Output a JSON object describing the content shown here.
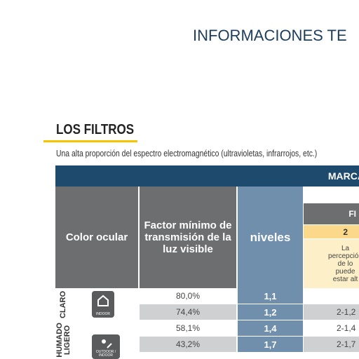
{
  "header": {
    "title": "INFORMACIONES TE"
  },
  "section": {
    "title": "LOS FILTROS",
    "intro": "Una alta proporción del espectro electromagnético (ultravioletas, infrarrojos, etc.)"
  },
  "table": {
    "banner": "MARCA",
    "columns": {
      "eye_color": "Color ocular",
      "factor": "Factor mínimo de transmisión de la luz visible",
      "levels": "niveles",
      "group": "FI",
      "sub": "2",
      "sub_note": "La percepción de lo puede estar alt"
    },
    "groups": [
      {
        "label": "CLARO",
        "icon": "INDOOR"
      },
      {
        "label": "HUMADO LIGERO",
        "icon": "OUTDOOR / INDOOR"
      }
    ],
    "rows": [
      [
        "80,0%",
        "1,1",
        ""
      ],
      [
        "74,4%",
        "1,2",
        "2-1,2"
      ],
      [
        "58,1%",
        "1,4",
        "2-1,4"
      ],
      [
        "43,2%",
        "1,7",
        "2-1,7"
      ]
    ]
  }
}
